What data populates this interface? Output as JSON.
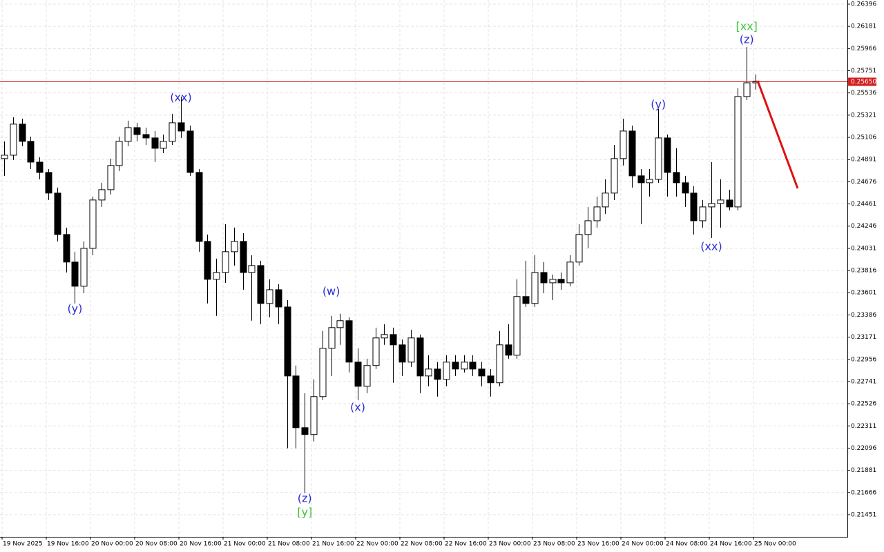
{
  "chart_data": {
    "type": "candlestick",
    "open": [
      0.249,
      0.24933,
      0.25234,
      0.25067,
      0.24866,
      0.24766,
      0.24566,
      0.24165,
      0.23898,
      0.23664,
      0.24031,
      0.24499,
      0.24599,
      0.24833,
      0.25067,
      0.252,
      0.25133,
      0.251,
      0.25,
      0.25067,
      0.25247,
      0.25167,
      0.24766,
      0.24098,
      0.23731,
      0.23797,
      0.23998,
      0.24098,
      0.23797,
      0.23864,
      0.23497,
      0.2363,
      0.23463,
      0.22795,
      0.22294,
      0.22228,
      0.22595,
      0.23063,
      0.23263,
      0.2333,
      0.22929,
      0.22695,
      0.22896,
      0.23163,
      0.23196,
      0.23096,
      0.22929,
      0.23163,
      0.22795,
      0.22862,
      0.22762,
      0.22929,
      0.22862,
      0.22929,
      0.22862,
      0.22795,
      0.22729,
      0.23096,
      0.22996,
      0.23564,
      0.23497,
      0.23797,
      0.23697,
      0.23731,
      0.23697,
      0.23898,
      0.24165,
      0.24298,
      0.24432,
      0.24566,
      0.249,
      0.25167,
      0.24733,
      0.24666,
      0.24699,
      0.251,
      0.24766,
      0.24666,
      0.24566,
      0.24298,
      0.24432,
      0.24465,
      0.24499,
      0.24432,
      0.25501,
      0.25634
    ],
    "high": [
      0.25067,
      0.253,
      0.25287,
      0.25113,
      0.24913,
      0.24799,
      0.24619,
      0.24232,
      0.23998,
      0.24098,
      0.24532,
      0.24666,
      0.249,
      0.25113,
      0.25267,
      0.25247,
      0.252,
      0.25167,
      0.25133,
      0.25334,
      0.25501,
      0.2522,
      0.24799,
      0.24165,
      0.23931,
      0.24265,
      0.24232,
      0.24178,
      0.23964,
      0.23911,
      0.23731,
      0.23684,
      0.2353,
      0.22896,
      0.22628,
      0.22762,
      0.2323,
      0.23377,
      0.23397,
      0.23363,
      0.23063,
      0.22962,
      0.23263,
      0.23296,
      0.23263,
      0.23149,
      0.23243,
      0.23196,
      0.22996,
      0.22929,
      0.22996,
      0.22996,
      0.22996,
      0.22996,
      0.22929,
      0.22862,
      0.2323,
      0.23296,
      0.23731,
      0.23911,
      0.23964,
      0.23898,
      0.23777,
      0.23797,
      0.23964,
      0.24265,
      0.24432,
      0.24532,
      0.24699,
      0.25033,
      0.25287,
      0.2522,
      0.24799,
      0.24799,
      0.25381,
      0.25133,
      0.25,
      0.24733,
      0.24632,
      0.24499,
      0.24866,
      0.24699,
      0.24599,
      0.25581,
      0.25982,
      0.25715
    ],
    "low": [
      0.24733,
      0.24886,
      0.2502,
      0.24799,
      0.24699,
      0.24499,
      0.24098,
      0.23797,
      0.23497,
      0.23597,
      0.23964,
      0.24432,
      0.24552,
      0.24779,
      0.2502,
      0.25067,
      0.25033,
      0.24866,
      0.24953,
      0.25033,
      0.251,
      0.24733,
      0.23998,
      0.23497,
      0.23377,
      0.23697,
      0.23864,
      0.2363,
      0.2333,
      0.23296,
      0.23363,
      0.23296,
      0.22094,
      0.22094,
      0.2166,
      0.22161,
      0.22562,
      0.22795,
      0.23096,
      0.22829,
      0.22562,
      0.22628,
      0.22862,
      0.23096,
      0.22729,
      0.22795,
      0.22882,
      0.22628,
      0.22695,
      0.22595,
      0.22695,
      0.22795,
      0.22829,
      0.22795,
      0.22695,
      0.22595,
      0.22695,
      0.22962,
      0.22962,
      0.23463,
      0.23463,
      0.23597,
      0.2353,
      0.2363,
      0.23664,
      0.23864,
      0.24031,
      0.24232,
      0.24365,
      0.24499,
      0.24833,
      0.24619,
      0.24265,
      0.24532,
      0.24666,
      0.24532,
      0.24532,
      0.24432,
      0.24165,
      0.24232,
      0.24131,
      0.24232,
      0.24399,
      0.24399,
      0.25467,
      0.25568
    ],
    "close": [
      0.24933,
      0.25234,
      0.25067,
      0.24866,
      0.24766,
      0.24566,
      0.24165,
      0.23898,
      0.23664,
      0.24031,
      0.24499,
      0.24599,
      0.24833,
      0.25067,
      0.252,
      0.25133,
      0.251,
      0.25,
      0.25067,
      0.25247,
      0.25167,
      0.24766,
      0.24098,
      0.23731,
      0.23797,
      0.23998,
      0.24098,
      0.23797,
      0.23864,
      0.23497,
      0.2363,
      0.23463,
      0.22795,
      0.22294,
      0.22228,
      0.22595,
      0.23063,
      0.23263,
      0.2333,
      0.22929,
      0.22695,
      0.22896,
      0.23163,
      0.23196,
      0.23096,
      0.22929,
      0.23163,
      0.22795,
      0.22862,
      0.22762,
      0.22929,
      0.22862,
      0.22929,
      0.22862,
      0.22795,
      0.22729,
      0.23096,
      0.22996,
      0.23564,
      0.23497,
      0.23797,
      0.23697,
      0.23731,
      0.23697,
      0.23898,
      0.24165,
      0.24298,
      0.24432,
      0.24566,
      0.249,
      0.25167,
      0.24733,
      0.24666,
      0.24699,
      0.251,
      0.24766,
      0.24666,
      0.24566,
      0.24298,
      0.24432,
      0.24465,
      0.24499,
      0.24432,
      0.25501,
      0.25634,
      0.2565
    ],
    "up_color": "#ffffff",
    "down_color": "#000000",
    "xlim": [
      -0.47,
      95.39
    ],
    "xticks": [
      {
        "value": 0,
        "label": "19 Nov 2025"
      },
      {
        "value": 5,
        "label": "19 Nov 16:00"
      },
      {
        "value": 10,
        "label": "20 Nov 00:00"
      },
      {
        "value": 15,
        "label": "20 Nov 08:00"
      },
      {
        "value": 20,
        "label": "20 Nov 16:00"
      },
      {
        "value": 25,
        "label": "21 Nov 00:00"
      },
      {
        "value": 30,
        "label": "21 Nov 08:00"
      },
      {
        "value": 35,
        "label": "21 Nov 16:00"
      },
      {
        "value": 40,
        "label": "22 Nov 00:00"
      },
      {
        "value": 45,
        "label": "22 Nov 08:00"
      },
      {
        "value": 50,
        "label": "22 Nov 16:00"
      },
      {
        "value": 55,
        "label": "23 Nov 00:00"
      },
      {
        "value": 60,
        "label": "23 Nov 08:00"
      },
      {
        "value": 65,
        "label": "23 Nov 16:00"
      },
      {
        "value": 70,
        "label": "24 Nov 00:00"
      },
      {
        "value": 75,
        "label": "24 Nov 08:00"
      },
      {
        "value": 80,
        "label": "24 Nov 16:00"
      },
      {
        "value": 85,
        "label": "25 Nov 00:00"
      }
    ],
    "ylim": [
      0.21237,
      0.26436
    ],
    "yticks": [
      0.26396,
      0.26181,
      0.25966,
      0.25751,
      0.25536,
      0.25321,
      0.25106,
      0.24891,
      0.24676,
      0.24461,
      0.24246,
      0.24031,
      0.23816,
      0.23601,
      0.23386,
      0.23171,
      0.22956,
      0.22741,
      0.22526,
      0.22311,
      0.22096,
      0.21881,
      0.21666,
      0.21451
    ],
    "grid": true,
    "current_price": {
      "value": 0.2565,
      "label": "0.25650"
    },
    "current_price_color": "#d02020",
    "annotations": [
      {
        "text": "(y)",
        "color": "#2b2bd6"
      },
      {
        "text": "(xx)",
        "color": "#2b2bd6"
      },
      {
        "text": "(z)",
        "color": "#2b2bd6"
      },
      {
        "text": "[y]",
        "color": "#3cc43c"
      },
      {
        "text": "(w)",
        "color": "#2b2bd6"
      },
      {
        "text": "(x)",
        "color": "#2b2bd6"
      },
      {
        "text": "(y)",
        "color": "#2b2bd6"
      },
      {
        "text": "(xx)",
        "color": "#2b2bd6"
      },
      {
        "text": "(z)",
        "color": "#2b2bd6"
      },
      {
        "text": "[xx]",
        "color": "#3cc43c"
      }
    ]
  }
}
